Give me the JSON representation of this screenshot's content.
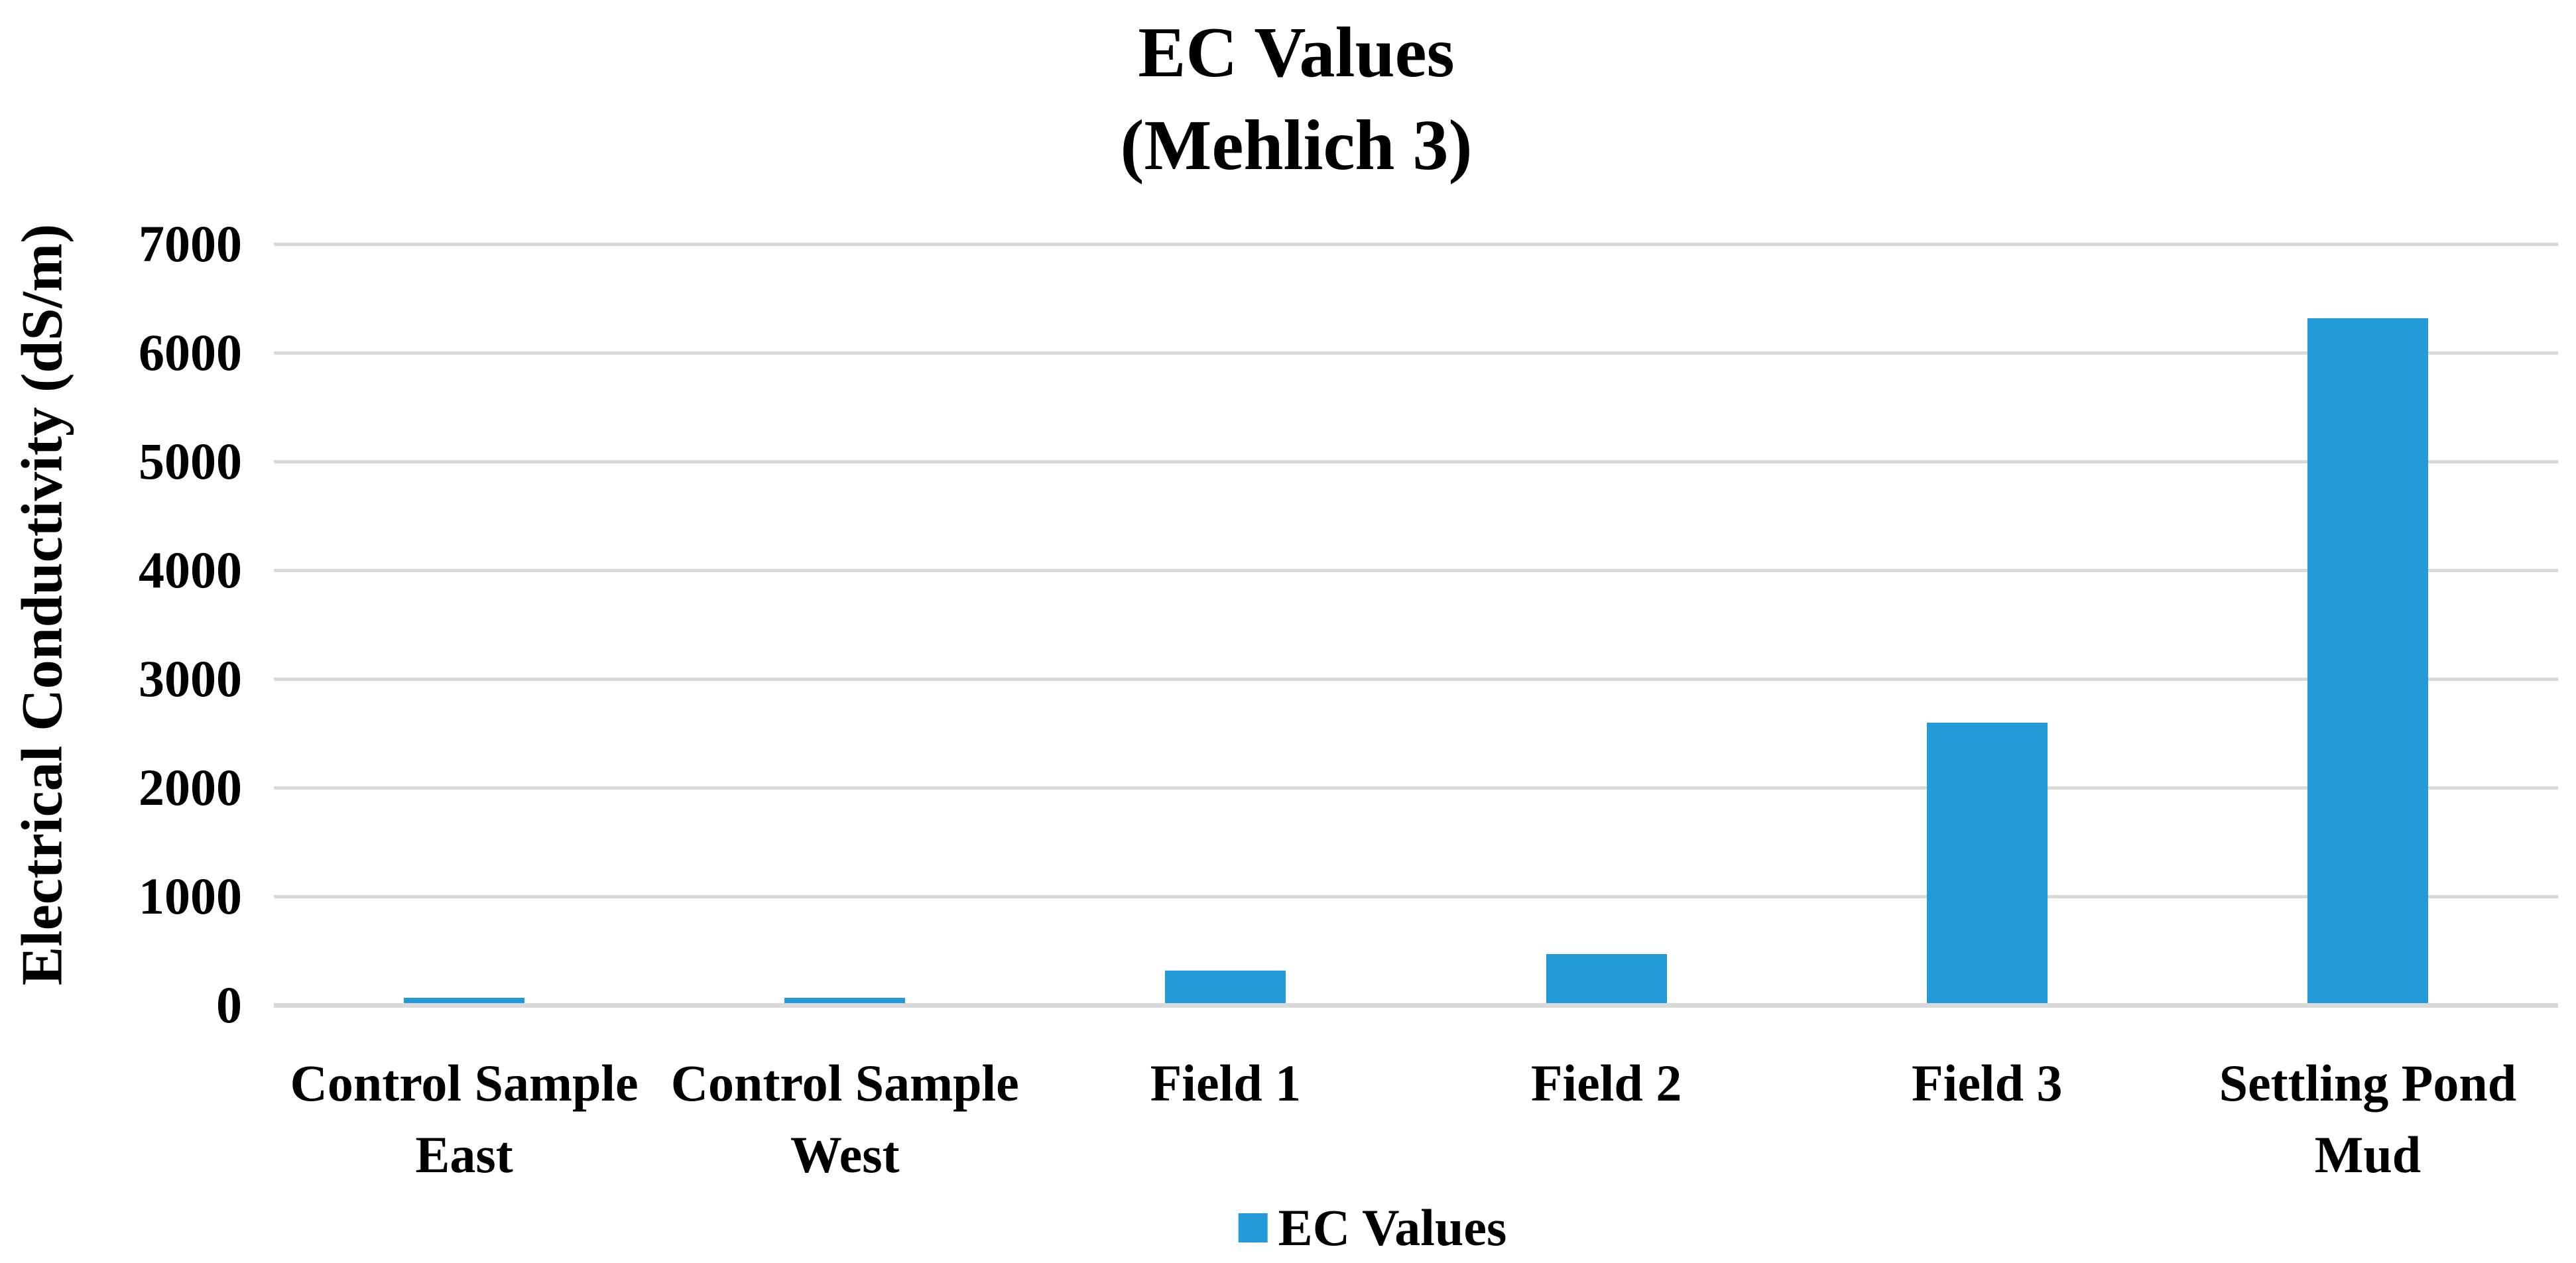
{
  "figure": {
    "title_line1": "EC Values",
    "title_line2": "(Mehlich 3)"
  },
  "y_axis": {
    "title": "Electrical Conductivity (dS/m)"
  },
  "legend": {
    "label": "EC Values"
  },
  "chart_data": {
    "type": "bar",
    "title": "EC Values (Mehlich 3)",
    "categories": [
      "Control Sample East",
      "Control Sample West",
      "Field 1",
      "Field 2",
      "Field 3",
      "Settling Pond Mud"
    ],
    "category_display_lines": [
      [
        "Control Sample",
        "East"
      ],
      [
        "Control Sample",
        "West"
      ],
      [
        "Field 1"
      ],
      [
        "Field 2"
      ],
      [
        "Field 3"
      ],
      [
        "Settling Pond",
        "Mud"
      ]
    ],
    "series": [
      {
        "name": "EC Values",
        "values": [
          50,
          50,
          300,
          450,
          2580,
          6300
        ]
      }
    ],
    "xlabel": "",
    "ylabel": "Electrical Conductivity (dS/m)",
    "ylim": [
      0,
      7000
    ],
    "yticks": [
      0,
      1000,
      2000,
      3000,
      4000,
      5000,
      6000,
      7000
    ],
    "grid": "horizontal-only",
    "legend_position": "bottom-center",
    "colors": {
      "bar": "#219AD7",
      "gridline": "#D9D9D9",
      "text": "#000000",
      "background": "#FFFFFF"
    }
  }
}
